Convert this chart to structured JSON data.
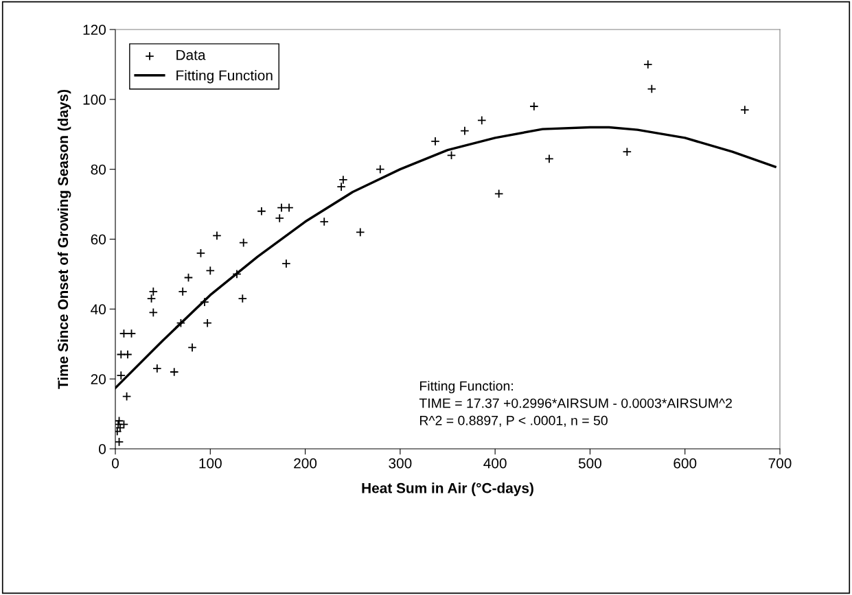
{
  "chart_data": {
    "type": "scatter",
    "xlabel": "Heat Sum in Air (°C-days)",
    "ylabel": "Time Since Onset of Growing Season (days)",
    "xlim": [
      0,
      700
    ],
    "xticks": [
      0,
      100,
      200,
      300,
      400,
      500,
      600,
      700
    ],
    "ylim": [
      0,
      120
    ],
    "yticks": [
      0,
      20,
      40,
      60,
      80,
      100,
      120
    ],
    "grid": false,
    "legend": "top left",
    "annotations": [
      "Fitting Function:\nTIME = 17.37 +0.2996*AIRSUM - 0.0003*AIRSUM^2\nR^2 = 0.8897, P < .0001, n = 50"
    ],
    "series": [
      {
        "name": "Data",
        "marker": "cross",
        "color": "#000000",
        "x": [
          2,
          3,
          4,
          4,
          9,
          5,
          6,
          6,
          13,
          9,
          17,
          12,
          38,
          40,
          40,
          44,
          62,
          69,
          71,
          77,
          81,
          90,
          94,
          97,
          100,
          107,
          128,
          134,
          135,
          154,
          173,
          175,
          183,
          180,
          220,
          238,
          240,
          258,
          279,
          337,
          354,
          368,
          386,
          404,
          441,
          457,
          539,
          561,
          565,
          663
        ],
        "values": [
          5,
          7,
          8,
          2,
          7,
          6,
          21,
          27,
          27,
          33,
          33,
          15,
          43,
          45,
          39,
          23,
          22,
          36,
          45,
          49,
          29,
          56,
          42,
          36,
          51,
          61,
          50,
          43,
          59,
          68,
          66,
          69,
          69,
          53,
          65,
          75,
          77,
          62,
          80,
          88,
          84,
          91,
          94,
          73,
          98,
          83,
          85,
          110,
          103,
          97
        ]
      },
      {
        "name": "Fitting Function",
        "type": "line",
        "marker": "none",
        "line_style": "solid",
        "color": "#000000",
        "x": [
          0,
          50,
          100,
          150,
          200,
          250,
          300,
          350,
          400,
          450,
          500,
          520,
          550,
          600,
          650,
          695
        ],
        "values": [
          17.4,
          31,
          44,
          55,
          65,
          73.5,
          80,
          85.5,
          89,
          91.5,
          92,
          92,
          91.3,
          89,
          85,
          80.7
        ]
      }
    ]
  }
}
